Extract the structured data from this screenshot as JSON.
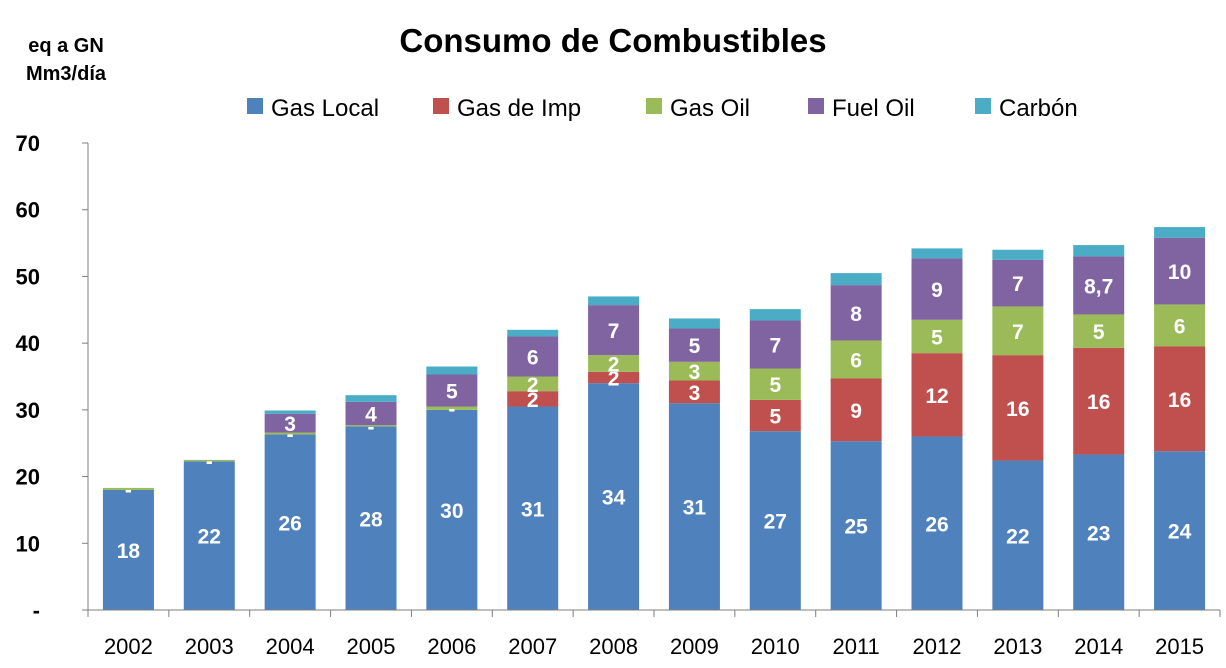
{
  "chart_data": {
    "type": "bar",
    "stacked": true,
    "title": "Consumo de Combustibles",
    "ylabel_lines": [
      "eq a GN",
      "Mm3/día"
    ],
    "ylim": [
      0,
      70
    ],
    "yticks": [
      0,
      10,
      20,
      30,
      40,
      50,
      60,
      70
    ],
    "ytick_labels": [
      "-",
      "10",
      "20",
      "30",
      "40",
      "50",
      "60",
      "70"
    ],
    "grid": false,
    "legend_position": "top",
    "categories": [
      "2002",
      "2003",
      "2004",
      "2005",
      "2006",
      "2007",
      "2008",
      "2009",
      "2010",
      "2011",
      "2012",
      "2013",
      "2014",
      "2015"
    ],
    "series": [
      {
        "name": "Gas Local",
        "color": "#4f81bd",
        "values": [
          18.0,
          22.3,
          26.3,
          27.5,
          30.0,
          30.5,
          34.0,
          31.0,
          26.8,
          25.3,
          26.0,
          22.4,
          23.3,
          23.8
        ],
        "labels": [
          "18",
          "22",
          "26",
          "28",
          "30",
          "31",
          "34",
          "31",
          "27",
          "25",
          "26",
          "22",
          "23",
          "24"
        ]
      },
      {
        "name": "Gas de Imp",
        "color": "#c0504d",
        "values": [
          0,
          0,
          0,
          0,
          0,
          2.3,
          1.7,
          3.4,
          4.7,
          9.4,
          12.5,
          15.8,
          16.0,
          15.7
        ],
        "labels": [
          "",
          "",
          "",
          "",
          "",
          "2",
          "2",
          "3",
          "5",
          "9",
          "12",
          "16",
          "16",
          "16"
        ]
      },
      {
        "name": "Gas Oil",
        "color": "#9bbb59",
        "values": [
          0.3,
          0.2,
          0.3,
          0.2,
          0.5,
          2.2,
          2.5,
          2.8,
          4.7,
          5.7,
          5.0,
          7.3,
          5.0,
          6.3
        ],
        "labels": [
          "-",
          "-",
          "-",
          "-",
          "-",
          "2",
          "2",
          "3",
          "5",
          "6",
          "5",
          "7",
          "5",
          "6"
        ]
      },
      {
        "name": "Fuel Oil",
        "color": "#8064a2",
        "values": [
          0,
          0,
          2.8,
          3.5,
          4.8,
          6.0,
          7.5,
          5.0,
          7.2,
          8.3,
          9.2,
          7.0,
          8.7,
          10.0
        ],
        "labels": [
          "",
          "",
          "3",
          "4",
          "5",
          "6",
          "7",
          "5",
          "7",
          "8",
          "9",
          "7",
          "8,7",
          "10"
        ]
      },
      {
        "name": "Carbón",
        "color": "#4bacc6",
        "values": [
          0,
          0,
          0.5,
          1.0,
          1.2,
          1.0,
          1.3,
          1.5,
          1.7,
          1.8,
          1.5,
          1.5,
          1.7,
          1.6
        ],
        "labels": [
          "",
          "",
          "",
          "",
          "",
          "",
          "",
          "",
          "",
          "",
          "",
          "",
          "",
          ""
        ]
      }
    ]
  }
}
